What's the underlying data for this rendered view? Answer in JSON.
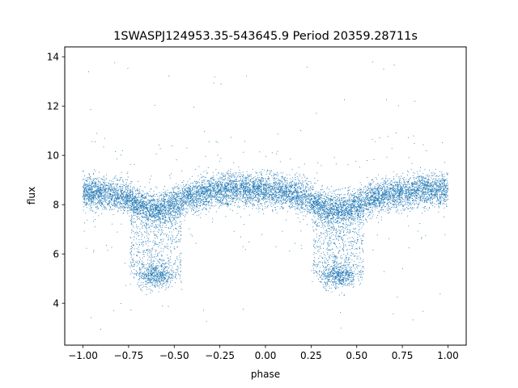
{
  "chart_data": {
    "type": "scatter",
    "title": "1SWASPJ124953.35-543645.9 Period 20359.28711s",
    "xlabel": "phase",
    "ylabel": "flux",
    "xlim": [
      -1.1,
      1.1
    ],
    "ylim": [
      2.3,
      14.4
    ],
    "x_ticks": [
      -1.0,
      -0.75,
      -0.5,
      -0.25,
      0.0,
      0.25,
      0.5,
      0.75,
      1.0
    ],
    "x_tick_labels": [
      "−1.00",
      "−0.75",
      "−0.50",
      "−0.25",
      "0.00",
      "0.25",
      "0.50",
      "0.75",
      "1.00"
    ],
    "y_ticks": [
      4,
      6,
      8,
      10,
      12,
      14
    ],
    "y_tick_labels": [
      "4",
      "6",
      "8",
      "10",
      "12",
      "14"
    ],
    "grid": false,
    "marker_color": "#1f77b4",
    "series": [
      {
        "profile": {
          "x": [
            -1.0,
            -0.9,
            -0.8,
            -0.75,
            -0.7,
            -0.65,
            -0.6,
            -0.55,
            -0.5,
            -0.45,
            -0.4,
            -0.3,
            -0.2,
            -0.1,
            0.0,
            0.1,
            0.2,
            0.25,
            0.3,
            0.35,
            0.4,
            0.45,
            0.5,
            0.55,
            0.6,
            0.7,
            0.8,
            0.9,
            1.0
          ],
          "median_flux": [
            8.5,
            8.45,
            8.35,
            8.25,
            8.05,
            7.9,
            7.85,
            7.9,
            8.05,
            8.2,
            8.35,
            8.5,
            8.6,
            8.6,
            8.6,
            8.5,
            8.35,
            8.2,
            8.0,
            7.85,
            7.8,
            7.85,
            8.0,
            8.15,
            8.3,
            8.45,
            8.55,
            8.6,
            8.6
          ]
        },
        "eclipse_cluster": {
          "centers": [
            -0.6,
            0.4
          ],
          "half_width": 0.1,
          "flux": 5.1
        },
        "outliers_range": [
          2.8,
          13.9
        ]
      }
    ]
  }
}
